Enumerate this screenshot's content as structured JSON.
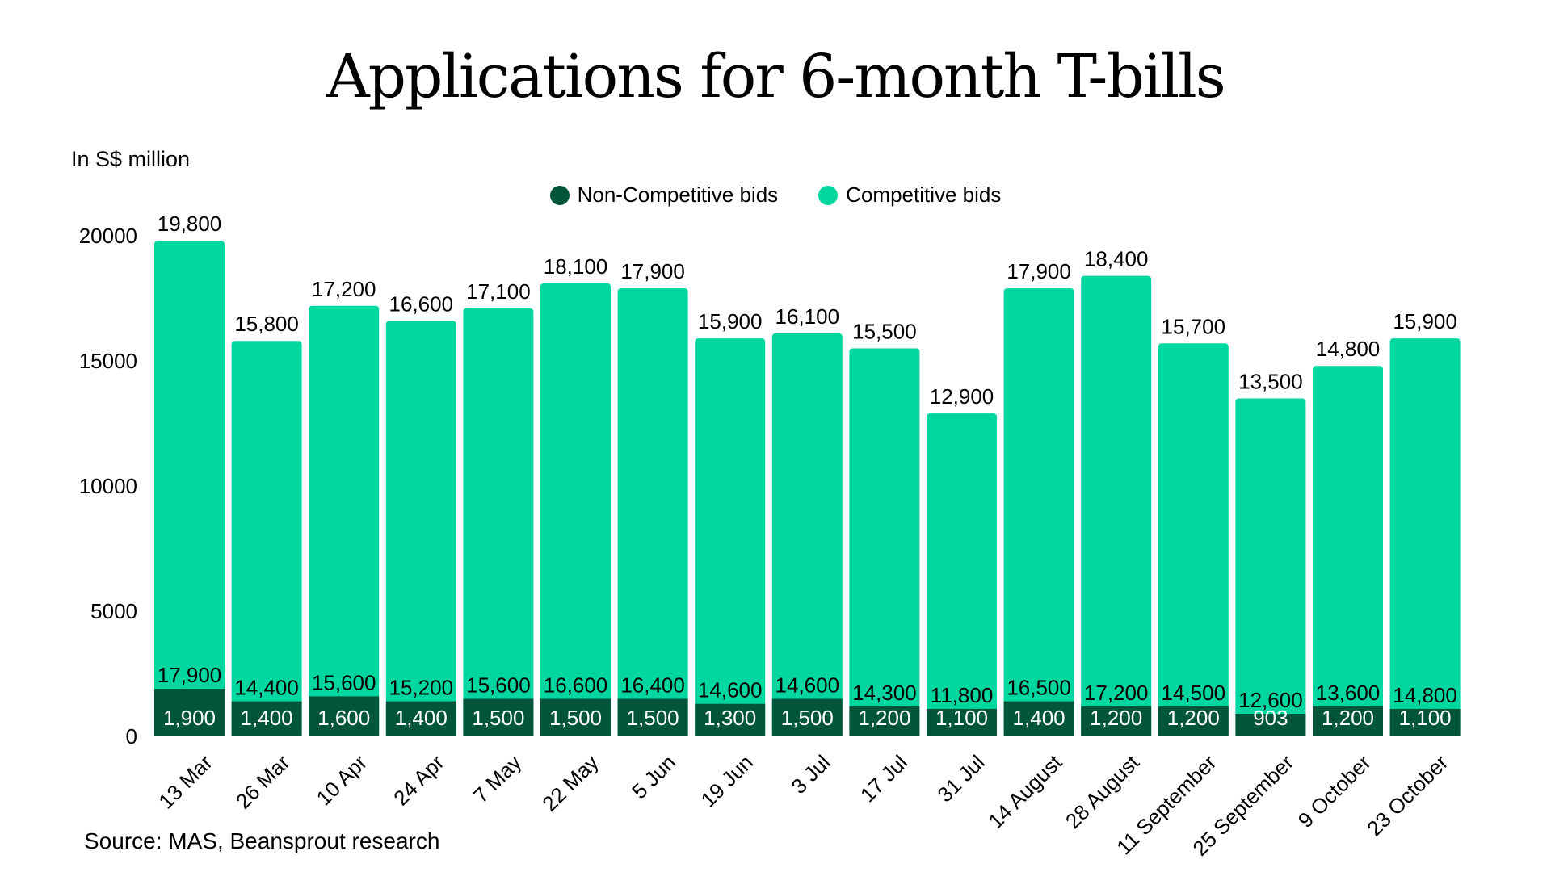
{
  "chart_data": {
    "type": "bar",
    "stacked": true,
    "title": "Applications for 6-month T-bills",
    "ylabel": "In S$ million",
    "ylim": [
      0,
      20000
    ],
    "yticks": [
      "0",
      "5000",
      "10000",
      "15000",
      "20000"
    ],
    "grid": false,
    "legend_position": "top-center",
    "categories": [
      "13 Mar",
      "26 Mar",
      "10 Apr",
      "24 Apr",
      "7 May",
      "22 May",
      "5 Jun",
      "19 Jun",
      "3 Jul",
      "17 Jul",
      "31 Jul",
      "14 August",
      "28 August",
      "11 September",
      "25 September",
      "9 October",
      "23 October"
    ],
    "series": [
      {
        "name": "Non-Competitive bids",
        "color": "#00553a",
        "values": [
          1900,
          1400,
          1600,
          1400,
          1500,
          1500,
          1500,
          1300,
          1500,
          1200,
          1100,
          1400,
          1200,
          1200,
          903,
          1200,
          1100
        ],
        "labels": [
          "1,900",
          "1,400",
          "1,600",
          "1,400",
          "1,500",
          "1,500",
          "1,500",
          "1,300",
          "1,500",
          "1,200",
          "1,100",
          "1,400",
          "1,200",
          "1,200",
          "903",
          "1,200",
          "1,100"
        ]
      },
      {
        "name": "Competitive bids",
        "color": "#00d6a0",
        "values": [
          17900,
          14400,
          15600,
          15200,
          15600,
          16600,
          16400,
          14600,
          14600,
          14300,
          11800,
          16500,
          17200,
          14500,
          12600,
          13600,
          14800
        ],
        "labels": [
          "17,900",
          "14,400",
          "15,600",
          "15,200",
          "15,600",
          "16,600",
          "16,400",
          "14,600",
          "14,600",
          "14,300",
          "11,800",
          "16,500",
          "17,200",
          "14,500",
          "12,600",
          "13,600",
          "14,800"
        ]
      }
    ],
    "totals": [
      19800,
      15800,
      17200,
      16600,
      17100,
      18100,
      17900,
      15900,
      16100,
      15500,
      12900,
      17900,
      18400,
      15700,
      13500,
      14800,
      15900
    ],
    "total_labels": [
      "19,800",
      "15,800",
      "17,200",
      "16,600",
      "17,100",
      "18,100",
      "17,900",
      "15,900",
      "16,100",
      "15,500",
      "12,900",
      "17,900",
      "18,400",
      "15,700",
      "13,500",
      "14,800",
      "15,900"
    ]
  },
  "source": "Source: MAS, Beansprout research"
}
